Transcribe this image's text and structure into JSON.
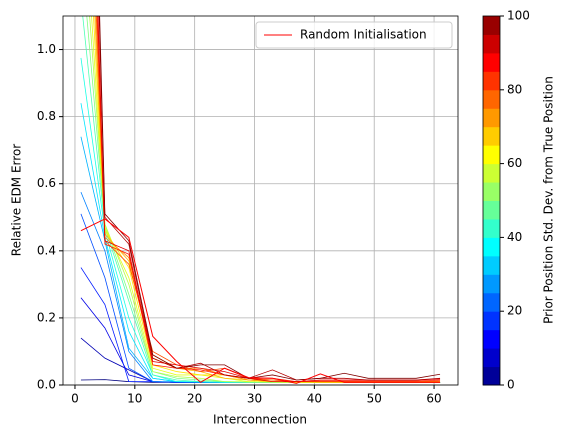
{
  "chart_data": {
    "type": "line",
    "x_label": "Interconnection",
    "y_label": "Relative EDM Error",
    "x": [
      1,
      5,
      9,
      13,
      17,
      21,
      25,
      29,
      33,
      37,
      41,
      45,
      49,
      53,
      57,
      61
    ],
    "xlim": [
      -2,
      64
    ],
    "xticks": [
      0,
      10,
      20,
      30,
      40,
      50,
      60
    ],
    "ylim": [
      0,
      1.1
    ],
    "yticks": [
      {
        "value": 0,
        "label": "0.0"
      },
      {
        "value": 0.2,
        "label": "0.2"
      },
      {
        "value": 0.4,
        "label": "0.4"
      },
      {
        "value": 0.6,
        "label": "0.6"
      },
      {
        "value": 0.8,
        "label": "0.8"
      },
      {
        "value": 1.0,
        "label": "1.0"
      }
    ],
    "grid": true,
    "legend": "upper right",
    "series": [
      {
        "name": "Random Initialisation",
        "color": "#ff0000",
        "values": [
          0.46,
          0.495,
          0.44,
          0.145,
          0.07,
          0.008,
          0.05,
          0.022,
          0.02,
          0.005,
          0.033,
          0.008,
          0.008,
          0.008,
          0.008,
          0.008
        ]
      }
    ],
    "colorbar": {
      "label": "Prior Position Std. Dev. from True Position",
      "clim": [
        0,
        100
      ],
      "ticks": [
        0,
        20,
        40,
        60,
        80,
        100
      ],
      "levels": 20,
      "colormap": "jet"
    },
    "level_series": [
      {
        "level": 0,
        "values": [
          0.015,
          0.016,
          0.01,
          0.008,
          0.008,
          0.008,
          0.008,
          0.008,
          0.008,
          0.008,
          0.008,
          0.008,
          0.008,
          0.008,
          0.008,
          0.008
        ]
      },
      {
        "level": 5,
        "values": [
          0.14,
          0.08,
          0.045,
          0.01,
          0.008,
          0.008,
          0.008,
          0.008,
          0.008,
          0.008,
          0.008,
          0.008,
          0.008,
          0.008,
          0.008,
          0.008
        ]
      },
      {
        "level": 10,
        "values": [
          0.26,
          0.17,
          0.03,
          0.01,
          0.008,
          0.008,
          0.008,
          0.008,
          0.008,
          0.008,
          0.008,
          0.008,
          0.008,
          0.008,
          0.008,
          0.008
        ]
      },
      {
        "level": 15,
        "values": [
          0.35,
          0.24,
          0.01,
          0.01,
          0.008,
          0.008,
          0.008,
          0.008,
          0.008,
          0.008,
          0.008,
          0.008,
          0.008,
          0.008,
          0.008,
          0.008
        ]
      },
      {
        "level": 20,
        "values": [
          0.51,
          0.32,
          0.05,
          0.01,
          0.008,
          0.008,
          0.008,
          0.008,
          0.008,
          0.008,
          0.008,
          0.008,
          0.008,
          0.008,
          0.008,
          0.008
        ]
      },
      {
        "level": 25,
        "values": [
          0.575,
          0.4,
          0.1,
          0.01,
          0.01,
          0.008,
          0.008,
          0.008,
          0.008,
          0.008,
          0.008,
          0.008,
          0.008,
          0.008,
          0.008,
          0.008
        ]
      },
      {
        "level": 30,
        "values": [
          0.74,
          0.43,
          0.11,
          0.02,
          0.01,
          0.008,
          0.008,
          0.008,
          0.008,
          0.008,
          0.008,
          0.008,
          0.008,
          0.008,
          0.008,
          0.008
        ]
      },
      {
        "level": 35,
        "values": [
          0.84,
          0.44,
          0.16,
          0.02,
          0.01,
          0.01,
          0.008,
          0.008,
          0.008,
          0.008,
          0.008,
          0.008,
          0.008,
          0.008,
          0.008,
          0.008
        ]
      },
      {
        "level": 40,
        "values": [
          0.975,
          0.46,
          0.2,
          0.03,
          0.01,
          0.01,
          0.008,
          0.008,
          0.008,
          0.008,
          0.008,
          0.008,
          0.008,
          0.008,
          0.008,
          0.008
        ]
      },
      {
        "level": 45,
        "values": [
          1.15,
          0.47,
          0.25,
          0.03,
          0.015,
          0.01,
          0.01,
          0.008,
          0.008,
          0.008,
          0.008,
          0.008,
          0.008,
          0.008,
          0.008,
          0.008
        ]
      },
      {
        "level": 50,
        "values": [
          1.3,
          0.48,
          0.27,
          0.04,
          0.02,
          0.015,
          0.01,
          0.008,
          0.008,
          0.008,
          0.008,
          0.008,
          0.008,
          0.008,
          0.008,
          0.008
        ]
      },
      {
        "level": 55,
        "values": [
          1.45,
          0.48,
          0.3,
          0.04,
          0.025,
          0.02,
          0.01,
          0.01,
          0.008,
          0.008,
          0.008,
          0.008,
          0.008,
          0.008,
          0.008,
          0.008
        ]
      },
      {
        "level": 60,
        "values": [
          1.6,
          0.47,
          0.32,
          0.05,
          0.03,
          0.03,
          0.02,
          0.01,
          0.01,
          0.008,
          0.008,
          0.008,
          0.008,
          0.008,
          0.008,
          0.008
        ]
      },
      {
        "level": 65,
        "values": [
          1.8,
          0.46,
          0.35,
          0.06,
          0.04,
          0.03,
          0.03,
          0.015,
          0.01,
          0.008,
          0.008,
          0.008,
          0.008,
          0.008,
          0.008,
          0.008
        ]
      },
      {
        "level": 70,
        "values": [
          2.0,
          0.45,
          0.37,
          0.08,
          0.05,
          0.04,
          0.02,
          0.015,
          0.01,
          0.01,
          0.008,
          0.008,
          0.008,
          0.008,
          0.008,
          0.008
        ]
      },
      {
        "level": 75,
        "values": [
          2.2,
          0.44,
          0.38,
          0.09,
          0.05,
          0.05,
          0.03,
          0.015,
          0.015,
          0.01,
          0.01,
          0.01,
          0.01,
          0.01,
          0.01,
          0.01
        ]
      },
      {
        "level": 80,
        "values": [
          2.4,
          0.43,
          0.36,
          0.1,
          0.06,
          0.04,
          0.05,
          0.02,
          0.015,
          0.01,
          0.01,
          0.01,
          0.01,
          0.01,
          0.01,
          0.012
        ]
      },
      {
        "level": 85,
        "values": [
          2.6,
          0.42,
          0.39,
          0.06,
          0.05,
          0.045,
          0.03,
          0.02,
          0.02,
          0.01,
          0.012,
          0.012,
          0.012,
          0.012,
          0.012,
          0.015
        ]
      },
      {
        "level": 90,
        "values": [
          2.8,
          0.43,
          0.4,
          0.07,
          0.06,
          0.05,
          0.04,
          0.02,
          0.01,
          0.01,
          0.015,
          0.015,
          0.015,
          0.015,
          0.015,
          0.018
        ]
      },
      {
        "level": 95,
        "values": [
          3.0,
          0.5,
          0.42,
          0.08,
          0.05,
          0.065,
          0.03,
          0.02,
          0.045,
          0.015,
          0.02,
          0.02,
          0.015,
          0.015,
          0.015,
          0.02
        ]
      },
      {
        "level": 100,
        "values": [
          3.2,
          0.51,
          0.43,
          0.09,
          0.05,
          0.06,
          0.06,
          0.02,
          0.03,
          0.015,
          0.02,
          0.035,
          0.02,
          0.02,
          0.02,
          0.032
        ]
      }
    ]
  }
}
